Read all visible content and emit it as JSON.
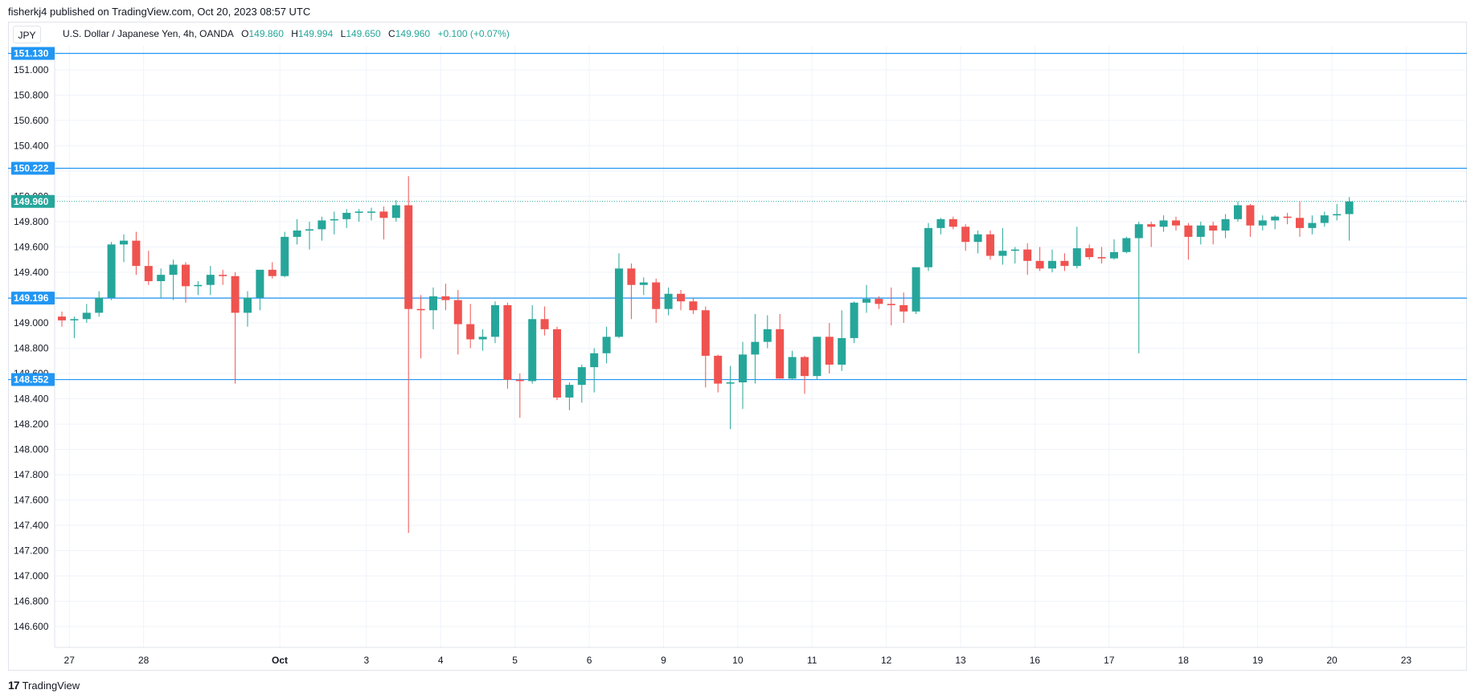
{
  "publisher": "fisherkj4 published on TradingView.com, Oct 20, 2023 08:57 UTC",
  "symbol_button": "JPY",
  "legend": {
    "title": "U.S. Dollar / Japanese Yen, 4h, OANDA",
    "o_label": "O",
    "o_value": "149.860",
    "h_label": "H",
    "h_value": "149.994",
    "l_label": "L",
    "l_value": "149.650",
    "c_label": "C",
    "c_value": "149.960",
    "change": "+0.100 (+0.07%)"
  },
  "footer": {
    "logo": "17",
    "brand": "TradingView"
  },
  "colors": {
    "up": "#26a69a",
    "down": "#ef5350",
    "hline": "#2196f3",
    "grid": "#f0f3fa",
    "price_tag": "#26a69a"
  },
  "chart_data": {
    "type": "candlestick",
    "timeframe": "4h",
    "ylim": [
      146.4,
      151.2
    ],
    "grid": true,
    "y_ticks": [
      "151.000",
      "150.800",
      "150.600",
      "150.400",
      "150.200",
      "150.000",
      "149.800",
      "149.600",
      "149.400",
      "149.200",
      "149.000",
      "148.800",
      "148.600",
      "148.400",
      "148.200",
      "148.000",
      "147.800",
      "147.600",
      "147.400",
      "147.200",
      "147.000",
      "146.800",
      "146.600"
    ],
    "x_ticks": [
      {
        "label": "27",
        "bar": 0.6,
        "bold": false
      },
      {
        "label": "28",
        "bar": 6.6,
        "bold": false
      },
      {
        "label": "Oct",
        "bar": 17.6,
        "bold": true
      },
      {
        "label": "3",
        "bar": 24.6,
        "bold": false
      },
      {
        "label": "4",
        "bar": 30.6,
        "bold": false
      },
      {
        "label": "5",
        "bar": 36.6,
        "bold": false
      },
      {
        "label": "6",
        "bar": 42.6,
        "bold": false
      },
      {
        "label": "9",
        "bar": 48.6,
        "bold": false
      },
      {
        "label": "10",
        "bar": 54.6,
        "bold": false
      },
      {
        "label": "11",
        "bar": 60.6,
        "bold": false
      },
      {
        "label": "12",
        "bar": 66.6,
        "bold": false
      },
      {
        "label": "13",
        "bar": 72.6,
        "bold": false
      },
      {
        "label": "16",
        "bar": 78.6,
        "bold": false
      },
      {
        "label": "17",
        "bar": 84.6,
        "bold": false
      },
      {
        "label": "18",
        "bar": 90.6,
        "bold": false
      },
      {
        "label": "19",
        "bar": 96.6,
        "bold": false
      },
      {
        "label": "20",
        "bar": 102.6,
        "bold": false
      },
      {
        "label": "23",
        "bar": 108.6,
        "bold": false
      }
    ],
    "horizontal_levels": [
      "151.130",
      "150.222",
      "149.196",
      "148.552"
    ],
    "last_price": "149.960",
    "candles": [
      [
        149.05,
        149.09,
        148.97,
        149.02
      ],
      [
        149.02,
        149.05,
        148.88,
        149.03
      ],
      [
        149.03,
        149.15,
        149.0,
        149.08
      ],
      [
        149.08,
        149.25,
        149.05,
        149.2
      ],
      [
        149.2,
        149.64,
        149.18,
        149.62
      ],
      [
        149.62,
        149.7,
        149.48,
        149.65
      ],
      [
        149.65,
        149.72,
        149.38,
        149.45
      ],
      [
        149.45,
        149.57,
        149.3,
        149.33
      ],
      [
        149.33,
        149.43,
        149.2,
        149.38
      ],
      [
        149.38,
        149.5,
        149.18,
        149.46
      ],
      [
        149.46,
        149.48,
        149.16,
        149.29
      ],
      [
        149.29,
        149.33,
        149.22,
        149.3
      ],
      [
        149.3,
        149.45,
        149.22,
        149.38
      ],
      [
        149.38,
        149.42,
        149.3,
        149.37
      ],
      [
        149.37,
        149.4,
        148.52,
        149.08
      ],
      [
        149.08,
        149.25,
        148.97,
        149.2
      ],
      [
        149.2,
        149.4,
        149.1,
        149.42
      ],
      [
        149.42,
        149.48,
        149.35,
        149.37
      ],
      [
        149.37,
        149.72,
        149.36,
        149.68
      ],
      [
        149.68,
        149.82,
        149.62,
        149.73
      ],
      [
        149.73,
        149.8,
        149.58,
        149.74
      ],
      [
        149.74,
        149.84,
        149.65,
        149.81
      ],
      [
        149.81,
        149.88,
        149.7,
        149.82
      ],
      [
        149.82,
        149.9,
        149.75,
        149.87
      ],
      [
        149.87,
        149.9,
        149.8,
        149.88
      ],
      [
        149.88,
        149.91,
        149.81,
        149.88
      ],
      [
        149.88,
        149.92,
        149.66,
        149.83
      ],
      [
        149.83,
        149.97,
        149.8,
        149.93
      ],
      [
        149.93,
        150.16,
        147.34,
        149.11
      ],
      [
        149.11,
        149.22,
        148.72,
        149.1
      ],
      [
        149.1,
        149.28,
        148.95,
        149.21
      ],
      [
        149.21,
        149.31,
        149.1,
        149.18
      ],
      [
        149.18,
        149.26,
        148.75,
        148.99
      ],
      [
        148.99,
        149.15,
        148.8,
        148.87
      ],
      [
        148.87,
        148.95,
        148.78,
        148.89
      ],
      [
        148.89,
        149.17,
        148.84,
        149.14
      ],
      [
        149.14,
        149.16,
        148.48,
        148.55
      ],
      [
        148.55,
        148.6,
        148.25,
        148.54
      ],
      [
        148.54,
        149.14,
        148.52,
        149.03
      ],
      [
        149.03,
        149.13,
        148.9,
        148.95
      ],
      [
        148.95,
        148.97,
        148.39,
        148.41
      ],
      [
        148.41,
        148.53,
        148.31,
        148.51
      ],
      [
        148.51,
        148.67,
        148.37,
        148.65
      ],
      [
        148.65,
        148.8,
        148.45,
        148.76
      ],
      [
        148.76,
        148.97,
        148.68,
        148.89
      ],
      [
        148.89,
        149.55,
        148.88,
        149.43
      ],
      [
        149.43,
        149.47,
        149.03,
        149.3
      ],
      [
        149.3,
        149.36,
        149.22,
        149.32
      ],
      [
        149.32,
        149.35,
        149.0,
        149.11
      ],
      [
        149.11,
        149.28,
        149.06,
        149.23
      ],
      [
        149.23,
        149.26,
        149.1,
        149.17
      ],
      [
        149.17,
        149.2,
        149.07,
        149.1
      ],
      [
        149.1,
        149.13,
        148.49,
        148.74
      ],
      [
        148.74,
        148.75,
        148.45,
        148.52
      ],
      [
        148.52,
        148.66,
        148.16,
        148.53
      ],
      [
        148.53,
        148.85,
        148.32,
        148.75
      ],
      [
        148.75,
        149.07,
        148.52,
        148.85
      ],
      [
        148.85,
        149.06,
        148.8,
        148.95
      ],
      [
        148.95,
        149.07,
        148.57,
        148.56
      ],
      [
        148.56,
        148.78,
        148.55,
        148.73
      ],
      [
        148.73,
        148.74,
        148.44,
        148.58
      ],
      [
        148.58,
        148.89,
        148.55,
        148.89
      ],
      [
        148.89,
        149.0,
        148.6,
        148.67
      ],
      [
        148.67,
        149.1,
        148.62,
        148.88
      ],
      [
        148.88,
        149.17,
        148.84,
        149.16
      ],
      [
        149.16,
        149.3,
        149.08,
        149.19
      ],
      [
        149.19,
        149.21,
        149.11,
        149.15
      ],
      [
        149.15,
        149.28,
        148.98,
        149.14
      ],
      [
        149.14,
        149.24,
        149.0,
        149.09
      ],
      [
        149.09,
        149.4,
        149.07,
        149.44
      ],
      [
        149.44,
        149.79,
        149.41,
        149.75
      ],
      [
        149.75,
        149.83,
        149.7,
        149.82
      ],
      [
        149.82,
        149.84,
        149.74,
        149.76
      ],
      [
        149.76,
        149.78,
        149.57,
        149.64
      ],
      [
        149.64,
        149.73,
        149.55,
        149.7
      ],
      [
        149.7,
        149.73,
        149.5,
        149.53
      ],
      [
        149.53,
        149.75,
        149.46,
        149.57
      ],
      [
        149.57,
        149.6,
        149.47,
        149.58
      ],
      [
        149.58,
        149.63,
        149.38,
        149.49
      ],
      [
        149.49,
        149.6,
        149.41,
        149.43
      ],
      [
        149.43,
        149.58,
        149.4,
        149.49
      ],
      [
        149.49,
        149.55,
        149.41,
        149.45
      ],
      [
        149.45,
        149.76,
        149.43,
        149.59
      ],
      [
        149.59,
        149.62,
        149.5,
        149.52
      ],
      [
        149.52,
        149.6,
        149.47,
        149.51
      ],
      [
        149.51,
        149.66,
        149.5,
        149.56
      ],
      [
        149.56,
        149.68,
        149.55,
        149.67
      ],
      [
        149.67,
        149.8,
        148.76,
        149.78
      ],
      [
        149.78,
        149.8,
        149.6,
        149.76
      ],
      [
        149.76,
        149.85,
        149.72,
        149.81
      ],
      [
        149.81,
        149.84,
        149.73,
        149.77
      ],
      [
        149.77,
        149.79,
        149.5,
        149.68
      ],
      [
        149.68,
        149.8,
        149.62,
        149.77
      ],
      [
        149.77,
        149.8,
        149.62,
        149.73
      ],
      [
        149.73,
        149.86,
        149.67,
        149.82
      ],
      [
        149.82,
        149.96,
        149.8,
        149.93
      ],
      [
        149.93,
        149.94,
        149.68,
        149.77
      ],
      [
        149.77,
        149.85,
        149.73,
        149.81
      ],
      [
        149.81,
        149.85,
        149.74,
        149.84
      ],
      [
        149.84,
        149.87,
        149.78,
        149.83
      ],
      [
        149.83,
        149.96,
        149.68,
        149.75
      ],
      [
        149.75,
        149.85,
        149.7,
        149.79
      ],
      [
        149.79,
        149.88,
        149.76,
        149.85
      ],
      [
        149.85,
        149.94,
        149.81,
        149.86
      ],
      [
        149.86,
        149.994,
        149.65,
        149.96
      ]
    ]
  }
}
